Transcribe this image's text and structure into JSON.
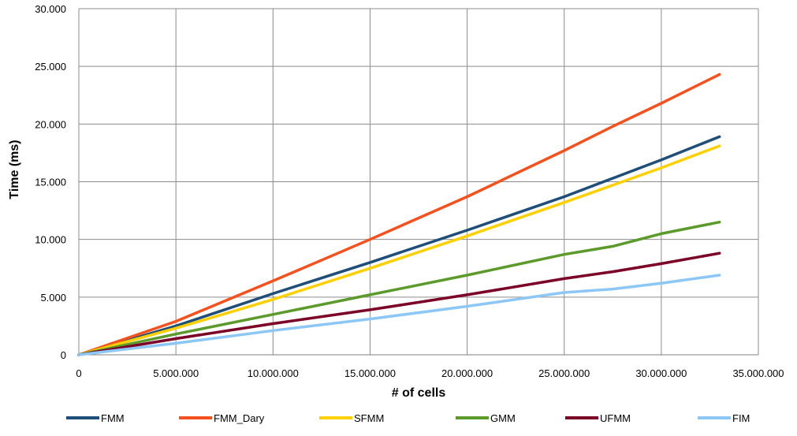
{
  "chart_data": {
    "type": "line",
    "title": "",
    "xlabel": "# of cells",
    "ylabel": "Time (ms)",
    "xlim": [
      0,
      35000000
    ],
    "ylim": [
      0,
      30000
    ],
    "x_ticks": [
      0,
      5000000,
      10000000,
      15000000,
      20000000,
      25000000,
      30000000,
      35000000
    ],
    "y_ticks": [
      0,
      5000,
      10000,
      15000,
      20000,
      25000,
      30000
    ],
    "x_tick_labels": [
      "0",
      "5.000.000",
      "10.000.000",
      "15.000.000",
      "20.000.000",
      "25.000.000",
      "30.000.000",
      "35.000.000"
    ],
    "y_tick_labels": [
      "0",
      "5.000",
      "10.000",
      "15.000",
      "20.000",
      "25.000",
      "30.000"
    ],
    "grid": "vertical and horizontal",
    "legend_position": "bottom",
    "x": [
      0,
      5000000,
      10000000,
      15000000,
      20000000,
      25000000,
      27500000,
      30000000,
      33000000
    ],
    "series": [
      {
        "name": "FMM",
        "color": "#1F4E79",
        "values": [
          0,
          2500,
          5300,
          8000,
          10800,
          13700,
          15300,
          16900,
          18900
        ]
      },
      {
        "name": "FMM_Dary",
        "color": "#F4511E",
        "values": [
          0,
          2900,
          6400,
          10000,
          13700,
          17700,
          19800,
          21800,
          24300
        ]
      },
      {
        "name": "SFMM",
        "color": "#FFD000",
        "values": [
          0,
          2300,
          4800,
          7500,
          10300,
          13200,
          14700,
          16200,
          18100
        ]
      },
      {
        "name": "GMM",
        "color": "#5B9A2B",
        "values": [
          0,
          1800,
          3500,
          5200,
          6900,
          8700,
          9400,
          10500,
          11500
        ]
      },
      {
        "name": "UFMM",
        "color": "#7B0028",
        "values": [
          0,
          1400,
          2700,
          3900,
          5200,
          6600,
          7200,
          7900,
          8800
        ]
      },
      {
        "name": "FIM",
        "color": "#8CC7F5",
        "values": [
          0,
          1000,
          2100,
          3100,
          4200,
          5400,
          5700,
          6200,
          6900
        ]
      }
    ]
  }
}
